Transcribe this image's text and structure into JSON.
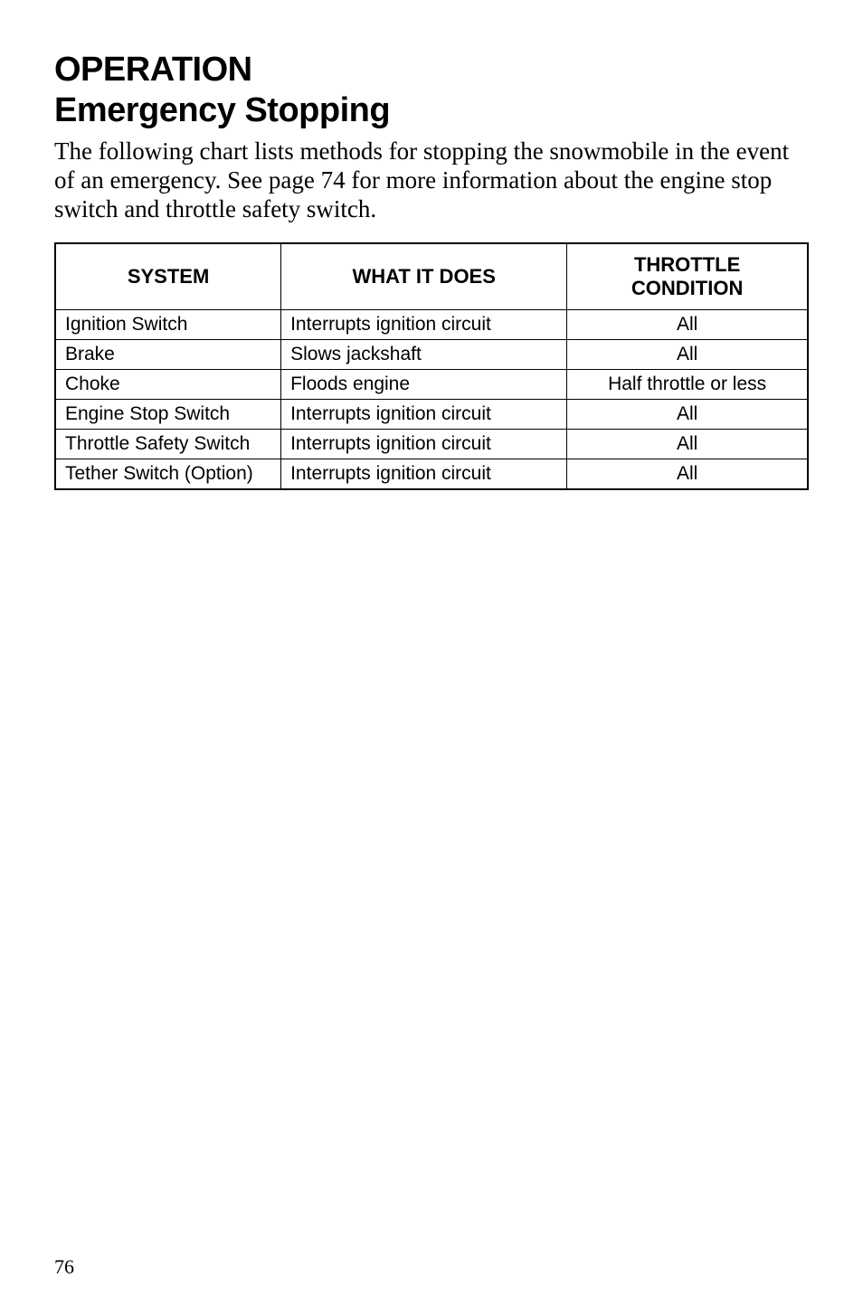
{
  "heading1": "OPERATION",
  "heading2": "Emergency Stopping",
  "body": "The following chart lists methods for stopping the snowmobile in the event of an emergency.  See page 74 for more information about the engine stop switch and throttle safety switch.",
  "table": {
    "headers": {
      "system": "SYSTEM",
      "what": "WHAT IT DOES",
      "throttle_line1": "THROTTLE",
      "throttle_line2": "CONDITION"
    },
    "rows": [
      {
        "system": "Ignition Switch",
        "what": "Interrupts ignition circuit",
        "throttle": "All"
      },
      {
        "system": "Brake",
        "what": "Slows jackshaft",
        "throttle": "All"
      },
      {
        "system": "Choke",
        "what": "Floods engine",
        "throttle": "Half throttle or less"
      },
      {
        "system": "Engine Stop Switch",
        "what": "Interrupts ignition circuit",
        "throttle": "All"
      },
      {
        "system": "Throttle Safety Switch",
        "what": "Interrupts ignition circuit",
        "throttle": "All"
      },
      {
        "system": "Tether Switch (Option)",
        "what": "Interrupts ignition circuit",
        "throttle": "All"
      }
    ]
  },
  "page_number": "76"
}
